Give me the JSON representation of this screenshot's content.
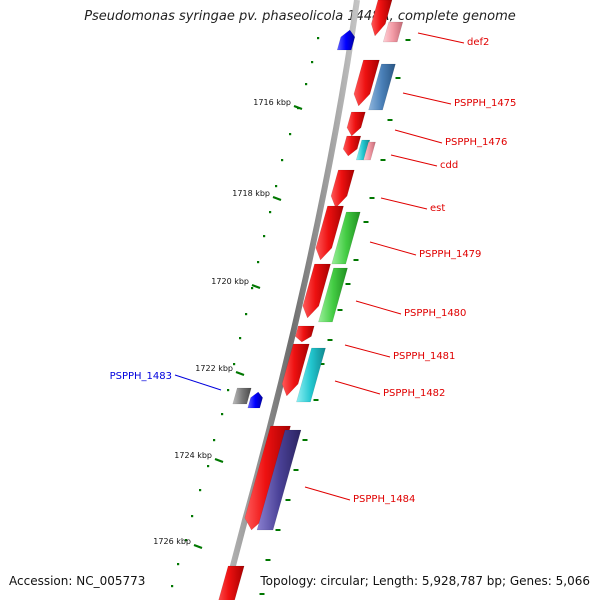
{
  "title": "Pseudomonas syringae pv. phaseolicola 1448A, complete genome",
  "accession": "Accession: NC_005773",
  "summary": "Topology: circular; Length: 5,928,787 bp; Genes: 5,066",
  "colors": {
    "backbone": "#8a8a8a",
    "gene_red": "#ee1111",
    "gene_steelblue": "#4a80b8",
    "gene_green": "#44cc44",
    "gene_cyan": "#22c6cf",
    "gene_purple": "#4b4298",
    "gene_pink": "#f29aa5",
    "gene_gray": "#7a7a7a",
    "gene_blue": "#0000ff",
    "tick_green": "#007700",
    "label_red": "#e00000",
    "label_blue": "#0000dd"
  },
  "ticks": [
    {
      "label": "1716 kbp"
    },
    {
      "label": "1718 kbp"
    },
    {
      "label": "1720 kbp"
    },
    {
      "label": "1722 kbp"
    },
    {
      "label": "1724 kbp"
    },
    {
      "label": "1726 kbp"
    }
  ],
  "gene_labels": [
    {
      "text": "def2",
      "color": "red"
    },
    {
      "text": "PSPPH_1475",
      "color": "red"
    },
    {
      "text": "PSPPH_1476",
      "color": "red"
    },
    {
      "text": "cdd",
      "color": "red"
    },
    {
      "text": "est",
      "color": "red"
    },
    {
      "text": "PSPPH_1479",
      "color": "red"
    },
    {
      "text": "PSPPH_1480",
      "color": "red"
    },
    {
      "text": "PSPPH_1481",
      "color": "red"
    },
    {
      "text": "PSPPH_1482",
      "color": "red"
    },
    {
      "text": "PSPPH_1483",
      "color": "blue"
    },
    {
      "text": "PSPPH_1484",
      "color": "red"
    }
  ]
}
